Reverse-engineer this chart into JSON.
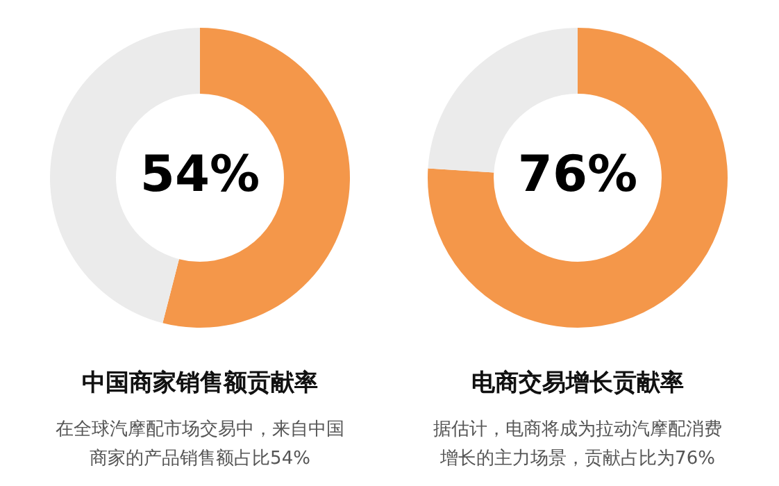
{
  "chart_data": [
    {
      "type": "donut",
      "title": "中国商家销售额贡献率",
      "subtitle": "在全球汽摩配市场交易中，来自中国商家的产品销售额占比54%",
      "categories": [
        null,
        null
      ],
      "values": [
        54,
        46
      ],
      "colors": [
        "#f4974a",
        "#ebebeb"
      ],
      "value_labels": [
        "54%",
        null
      ],
      "legend": false
    },
    {
      "type": "donut",
      "title": "电商交易增长贡献率",
      "subtitle": "据估计，电商将成为拉动汽摩配消费增长的主力场景，贡献占比为76%",
      "categories": [
        null,
        null
      ],
      "values": [
        76,
        24
      ],
      "colors": [
        "#f4974a",
        "#ebebeb"
      ],
      "value_labels": [
        "76%",
        null
      ],
      "legend": false
    }
  ]
}
